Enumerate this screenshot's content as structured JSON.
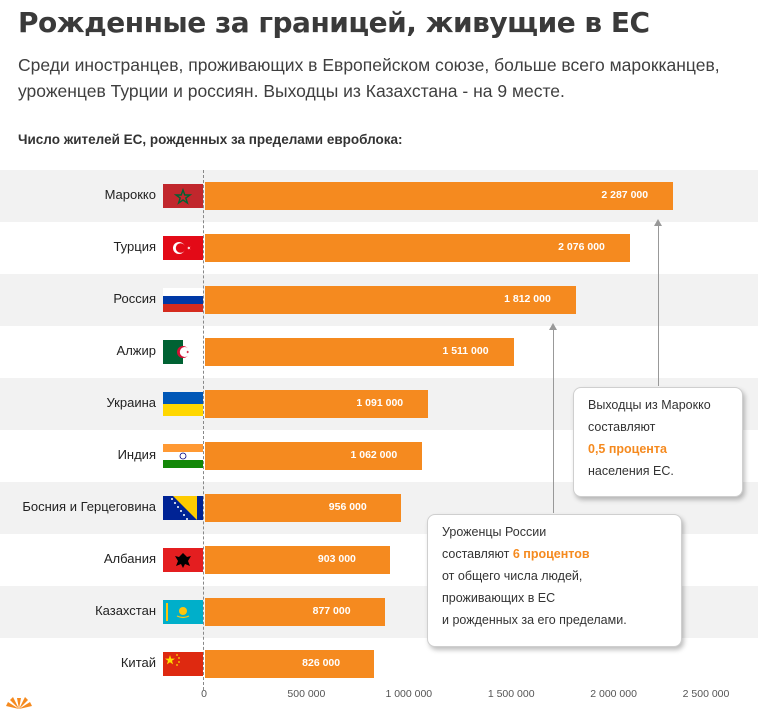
{
  "title": "Рожденные за границей, живущие в ЕС",
  "subtitle": "Среди иностранцев, проживающих в Европейском союзе, больше всего марокканцев, уроженцев Турции и россиян. Выходцы из Казахстана - на 9 месте.",
  "caption": "Число жителей ЕС, рожденных за пределами евроблока:",
  "chart_data": {
    "type": "bar",
    "orientation": "horizontal",
    "categories": [
      "Марокко",
      "Турция",
      "Россия",
      "Алжир",
      "Украина",
      "Индия",
      "Босния и Герцеговина",
      "Албания",
      "Казахстан",
      "Китай"
    ],
    "values": [
      2287000,
      2076000,
      1812000,
      1511000,
      1091000,
      1062000,
      956000,
      903000,
      877000,
      826000
    ],
    "value_labels": [
      "2 287 000",
      "2 076 000",
      "1 812 000",
      "1 511 000",
      "1 091 000",
      "1 062 000",
      "956 000",
      "903 000",
      "877 000",
      "826 000"
    ],
    "xlim": [
      0,
      2500000
    ],
    "xticks": [
      0,
      500000,
      1000000,
      1500000,
      2000000,
      2500000
    ],
    "xtick_labels": [
      "0",
      "500 000",
      "1 000 000",
      "1 500 000",
      "2 000 000",
      "2 500 000"
    ],
    "bar_color": "#f58a1f",
    "grid": false
  },
  "flags": [
    {
      "name": "morocco-flag-icon"
    },
    {
      "name": "turkey-flag-icon"
    },
    {
      "name": "russia-flag-icon"
    },
    {
      "name": "algeria-flag-icon"
    },
    {
      "name": "ukraine-flag-icon"
    },
    {
      "name": "india-flag-icon"
    },
    {
      "name": "bosnia-flag-icon"
    },
    {
      "name": "albania-flag-icon"
    },
    {
      "name": "kazakhstan-flag-icon"
    },
    {
      "name": "china-flag-icon"
    }
  ],
  "callouts": {
    "morocco": {
      "line1": "Выходцы из Марокко",
      "line2": "составляют",
      "highlight": "0,5 процента",
      "line4": "населения ЕС."
    },
    "russia": {
      "line1": "Уроженцы России",
      "line2_prefix": "составляют",
      "highlight": "6 процентов",
      "line3": "от общего числа людей,",
      "line4": "проживающих в ЕС",
      "line5": "и рожденных за его пределами."
    }
  },
  "colors": {
    "accent": "#f58a1f",
    "band": "#f2f2f2"
  }
}
